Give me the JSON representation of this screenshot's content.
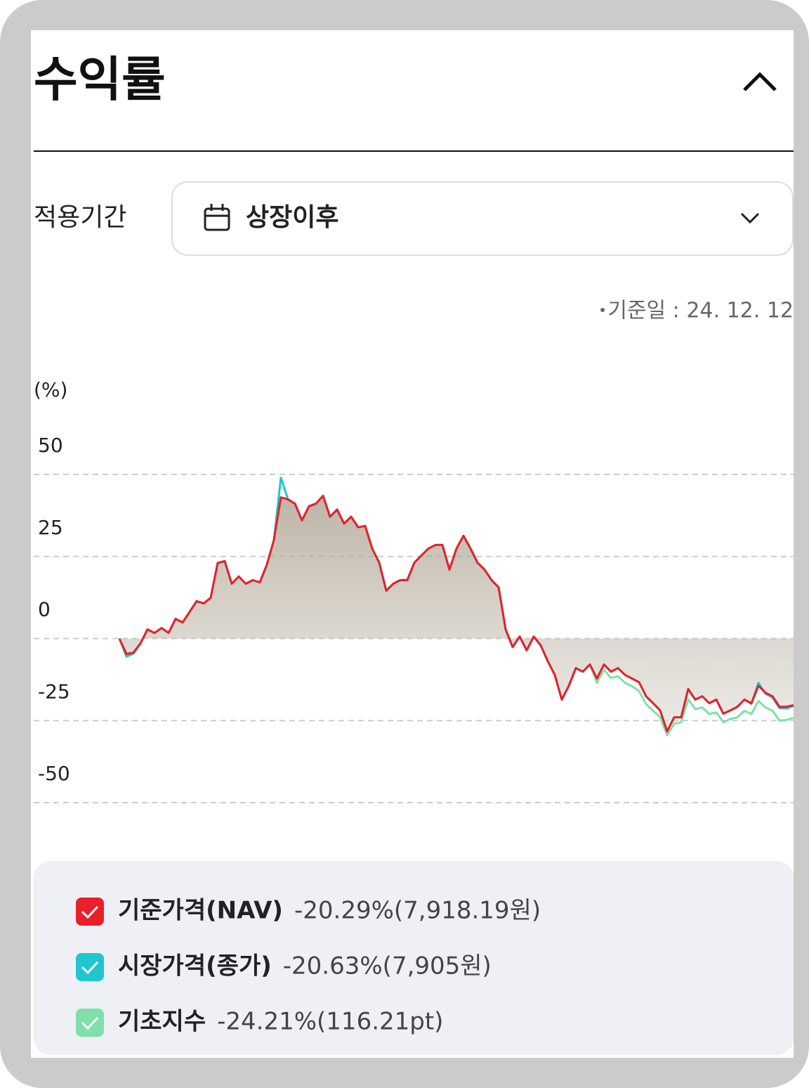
{
  "header": {
    "title": "수익률"
  },
  "period": {
    "label": "적용기간",
    "selected": "상장이후"
  },
  "base_date": "기준일 : 24. 12. 12",
  "chart_data": {
    "type": "line",
    "y_label": "(%)",
    "ylim": [
      -50,
      50
    ],
    "yticks": [
      50,
      25,
      0,
      -25,
      -50
    ],
    "grid": true,
    "series": [
      {
        "name": "기준가격(NAV)",
        "summary": "-20.29%(7,918.19원)",
        "color": "#e8202a",
        "values": [
          0,
          -4.7,
          -4.3,
          -1.5,
          2.8,
          1.7,
          3.2,
          1.7,
          6,
          4.9,
          8.1,
          11.4,
          10.7,
          12.4,
          23,
          23.6,
          16.7,
          18.9,
          16.7,
          17.8,
          17.1,
          22.5,
          30,
          43,
          42.4,
          41.1,
          36,
          40.3,
          41.1,
          43.5,
          37.1,
          39.3,
          35,
          37.1,
          33.9,
          34.3,
          27.4,
          23.1,
          14.6,
          16.7,
          17.8,
          17.8,
          23.1,
          25.3,
          27.4,
          28.5,
          28.5,
          21,
          27.4,
          31.3,
          27.4,
          23.1,
          21,
          17.8,
          15.6,
          2.8,
          -2.6,
          0.6,
          -3.6,
          0.6,
          -2.1,
          -6.9,
          -11.1,
          -18.6,
          -14.4,
          -9,
          -10.1,
          -7.9,
          -12.2,
          -7.9,
          -10.1,
          -9,
          -11.1,
          -12.2,
          -13.3,
          -17.6,
          -19.7,
          -21.9,
          -28.3,
          -24,
          -24,
          -15.4,
          -18.6,
          -17.6,
          -19.7,
          -18.6,
          -22.9,
          -21.9,
          -20.8,
          -18.6,
          -19.7,
          -14.4,
          -16.5,
          -17.6,
          -20.8,
          -20.8,
          -20.3
        ]
      },
      {
        "name": "시장가격(종가)",
        "summary": "-20.63%(7,905원)",
        "color": "#1fc6d0",
        "values": [
          0,
          -5.5,
          -4.6,
          -1.5,
          2.8,
          1.7,
          3.2,
          1.7,
          6,
          4.9,
          8.1,
          11.4,
          10.7,
          12.4,
          23,
          23.6,
          16.7,
          18.9,
          16.7,
          17.8,
          17.1,
          22.5,
          30,
          49,
          42.4,
          41.1,
          36,
          40.3,
          41.1,
          43.5,
          37.1,
          39.3,
          35,
          37.1,
          33.9,
          34.3,
          27.4,
          23.1,
          14.6,
          16.7,
          17.8,
          17.8,
          23.1,
          25.3,
          27.4,
          28.5,
          28.5,
          21,
          27.4,
          31.3,
          27.4,
          23.1,
          21,
          17.8,
          15.6,
          2.8,
          -2.6,
          0.6,
          -3.6,
          0.6,
          -2.1,
          -6.9,
          -11.1,
          -18.6,
          -14.4,
          -9,
          -10.1,
          -7.9,
          -12.2,
          -7.9,
          -10.1,
          -9,
          -11.1,
          -12.2,
          -13.3,
          -17.6,
          -19.7,
          -21.9,
          -28.3,
          -24,
          -24,
          -15.4,
          -18.6,
          -17.6,
          -19.7,
          -18.6,
          -22.9,
          -21.9,
          -20.8,
          -18.6,
          -19.9,
          -13.5,
          -16.8,
          -18,
          -21.2,
          -21.3,
          -20.6
        ]
      },
      {
        "name": "기초지수",
        "summary": "-24.21%(116.21pt)",
        "color": "#7fe0a8",
        "values": [
          0,
          -4.7,
          -4.3,
          -1.5,
          2.8,
          1.7,
          3.2,
          1.7,
          6,
          4.9,
          8.1,
          11.4,
          10.7,
          12.4,
          23,
          23.6,
          16.7,
          18.9,
          16.7,
          17.8,
          17.1,
          22.5,
          30,
          43,
          42.4,
          41.1,
          36,
          40.3,
          41.1,
          43.5,
          37.1,
          39.3,
          35,
          37.1,
          33.9,
          34.3,
          27.4,
          23.1,
          14.6,
          16.7,
          17.8,
          17.8,
          23.1,
          25.3,
          27.4,
          28.5,
          28.5,
          21,
          27.4,
          31.3,
          27.4,
          23.1,
          21,
          17.8,
          15.6,
          2.8,
          -2.6,
          0.6,
          -3.6,
          0.6,
          -2.1,
          -6.9,
          -11.1,
          -18.6,
          -14.4,
          -9,
          -10.1,
          -7.9,
          -13.5,
          -9.5,
          -12,
          -11.5,
          -13.5,
          -14.5,
          -16,
          -20,
          -22,
          -24,
          -29.5,
          -26,
          -25.5,
          -18.5,
          -21.5,
          -21,
          -23,
          -22.5,
          -25.5,
          -24.5,
          -24,
          -22,
          -23,
          -19,
          -21,
          -22,
          -25,
          -24.8,
          -24.2
        ]
      }
    ]
  }
}
